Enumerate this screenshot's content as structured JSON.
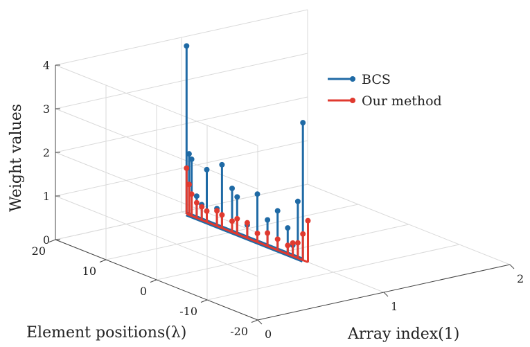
{
  "chart_data": {
    "type": "stem3",
    "title": "",
    "xlabel": "Array index(1)",
    "ylabel": "Element positions(λ)",
    "zlabel": "Weight values",
    "x_ticks": [
      "0",
      "1",
      "2"
    ],
    "y_ticks": [
      "-20",
      "-10",
      "0",
      "10",
      "20"
    ],
    "z_ticks": [
      "0",
      "1",
      "2",
      "3",
      "4"
    ],
    "xlim": [
      0,
      2
    ],
    "ylim": [
      -20,
      20
    ],
    "zlim": [
      0,
      4
    ],
    "grid": true,
    "legend_position": "top-right",
    "series": [
      {
        "name": "BCS",
        "color": "#1f6aa5",
        "x": [
          1,
          1,
          1,
          1,
          1,
          1,
          1,
          1,
          1,
          1,
          1,
          1,
          1,
          1,
          1,
          1,
          1,
          1
        ],
        "y": [
          19,
          18.5,
          18,
          17,
          16,
          15,
          13,
          12,
          10,
          9,
          7,
          5,
          3,
          1,
          -1,
          -2,
          -3,
          -4
        ],
        "z": [
          3.85,
          1.4,
          1.3,
          0.5,
          0.35,
          1.2,
          0.4,
          1.45,
          1.0,
          0.85,
          0.3,
          1.1,
          0.6,
          0.9,
          0.6,
          0.25,
          1.3,
          3.15
        ]
      },
      {
        "name": "Our method",
        "color": "#e03a2f",
        "x": [
          1,
          1,
          1,
          1,
          1,
          1,
          1,
          1,
          1,
          1,
          1,
          1,
          1,
          1,
          1,
          1,
          1,
          1,
          1
        ],
        "y": [
          19,
          18.5,
          18,
          17,
          16,
          15,
          13,
          12,
          10,
          9,
          7,
          5,
          3,
          1,
          -1,
          -2,
          -3,
          -4,
          -5
        ],
        "z": [
          1.05,
          0.7,
          0.5,
          0.35,
          0.3,
          0.25,
          0.35,
          0.3,
          0.25,
          0.35,
          0.35,
          0.2,
          0.3,
          0.25,
          0.2,
          0.3,
          0.35,
          0.6,
          0.95
        ]
      }
    ]
  }
}
